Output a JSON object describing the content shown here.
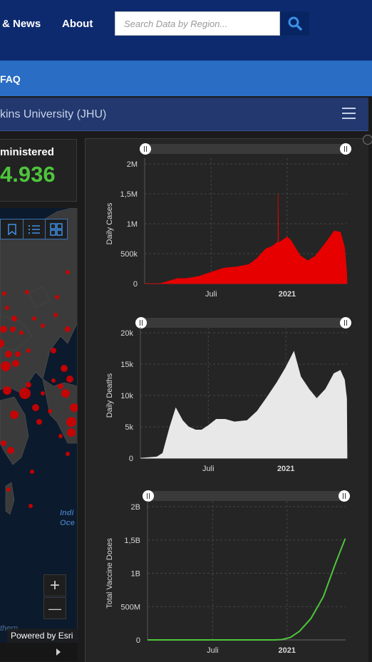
{
  "nav": {
    "news_label": "& News",
    "about_label": "About",
    "search_placeholder": "Search Data by Region..."
  },
  "subnav": {
    "faq_label": "FAQ"
  },
  "header": {
    "title": "kins University (JHU)"
  },
  "vaccine_counter": {
    "label": "ministered",
    "value": "4.936"
  },
  "map": {
    "ocean_label_1": "Indi",
    "ocean_label_2": "Oce",
    "southern_label": "thern",
    "attribution": "Powered by Esri",
    "zoom_in_label": "+",
    "zoom_out_label": "—"
  },
  "chart_data": [
    {
      "type": "bar",
      "ylabel": "Daily Cases",
      "color": "#e60000",
      "yticks": [
        "0",
        "500k",
        "1M",
        "1,5M",
        "2M"
      ],
      "ylim": [
        0,
        2000000
      ],
      "xticks": [
        "Juli",
        "2021"
      ],
      "x_start": "2020-01-22",
      "points": [
        [
          "2020-01-22",
          0
        ],
        [
          "2020-03-01",
          2000
        ],
        [
          "2020-03-25",
          50000
        ],
        [
          "2020-04-10",
          85000
        ],
        [
          "2020-05-01",
          85000
        ],
        [
          "2020-06-01",
          120000
        ],
        [
          "2020-07-01",
          190000
        ],
        [
          "2020-08-01",
          260000
        ],
        [
          "2020-09-01",
          280000
        ],
        [
          "2020-10-01",
          320000
        ],
        [
          "2020-10-20",
          420000
        ],
        [
          "2020-11-10",
          580000
        ],
        [
          "2020-11-25",
          620000
        ],
        [
          "2020-12-10",
          700000
        ],
        [
          "2020-12-10",
          1500000
        ],
        [
          "2020-12-11",
          680000
        ],
        [
          "2021-01-01",
          780000
        ],
        [
          "2021-01-10",
          720000
        ],
        [
          "2021-02-01",
          470000
        ],
        [
          "2021-02-20",
          380000
        ],
        [
          "2021-03-10",
          460000
        ],
        [
          "2021-04-01",
          650000
        ],
        [
          "2021-04-25",
          880000
        ],
        [
          "2021-05-10",
          860000
        ],
        [
          "2021-05-20",
          600000
        ],
        [
          "2021-05-25",
          200000
        ]
      ]
    },
    {
      "type": "bar",
      "ylabel": "Daily Deaths",
      "color": "#e8e8e8",
      "yticks": [
        "0",
        "5k",
        "10k",
        "15k",
        "20k"
      ],
      "ylim": [
        0,
        20000
      ],
      "xticks": [
        "Juli",
        "2021"
      ],
      "x_start": "2020-01-22",
      "points": [
        [
          "2020-01-22",
          0
        ],
        [
          "2020-03-01",
          200
        ],
        [
          "2020-03-15",
          800
        ],
        [
          "2020-04-01",
          5000
        ],
        [
          "2020-04-15",
          8000
        ],
        [
          "2020-05-01",
          6000
        ],
        [
          "2020-05-15",
          5000
        ],
        [
          "2020-06-01",
          4500
        ],
        [
          "2020-06-15",
          4500
        ],
        [
          "2020-07-01",
          5200
        ],
        [
          "2020-07-20",
          6200
        ],
        [
          "2020-08-10",
          6200
        ],
        [
          "2020-09-01",
          5800
        ],
        [
          "2020-10-01",
          6000
        ],
        [
          "2020-10-25",
          7500
        ],
        [
          "2020-11-15",
          9500
        ],
        [
          "2020-12-10",
          12000
        ],
        [
          "2021-01-01",
          14500
        ],
        [
          "2021-01-20",
          17000
        ],
        [
          "2021-02-05",
          13000
        ],
        [
          "2021-02-25",
          11000
        ],
        [
          "2021-03-15",
          9500
        ],
        [
          "2021-04-05",
          11000
        ],
        [
          "2021-04-25",
          13500
        ],
        [
          "2021-05-10",
          14000
        ],
        [
          "2021-05-20",
          12500
        ],
        [
          "2021-05-25",
          9500
        ]
      ]
    },
    {
      "type": "line",
      "ylabel": "Total Vaccine Doses",
      "color": "#4ec53c",
      "yticks": [
        "0",
        "500M",
        "1B",
        "1,5B",
        "2B"
      ],
      "ylim": [
        0,
        2000000000
      ],
      "xticks": [
        "Juli",
        "2021"
      ],
      "x_start": "2020-01-22",
      "points": [
        [
          "2020-01-22",
          0
        ],
        [
          "2020-12-01",
          0
        ],
        [
          "2020-12-20",
          5000000
        ],
        [
          "2021-01-10",
          40000000
        ],
        [
          "2021-02-01",
          130000000
        ],
        [
          "2021-03-01",
          320000000
        ],
        [
          "2021-04-01",
          650000000
        ],
        [
          "2021-05-01",
          1150000000
        ],
        [
          "2021-05-25",
          1520000000
        ]
      ]
    }
  ]
}
